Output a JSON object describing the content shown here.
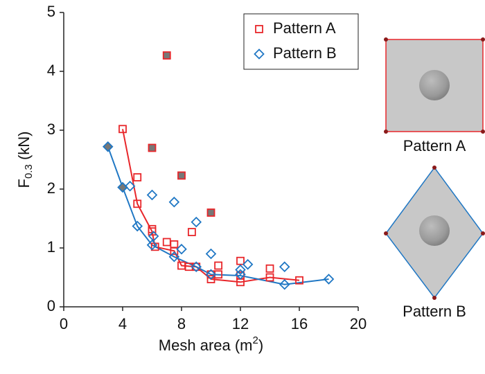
{
  "chart_data": {
    "type": "scatter",
    "x_label": {
      "text": "Mesh area (m",
      "sup": "2",
      "end": ")"
    },
    "y_label": {
      "text": "F",
      "sub": "0.3",
      "end": " (kN)"
    },
    "xlim": [
      0,
      20
    ],
    "xticks": [
      0,
      4,
      8,
      12,
      16,
      20
    ],
    "ylim": [
      0,
      5
    ],
    "yticks": [
      0,
      1,
      2,
      3,
      4,
      5
    ],
    "legend": "top-right",
    "panel_labels": [
      "Pattern A",
      "Pattern B"
    ],
    "series": [
      {
        "name": "Pattern A",
        "color": "#e8262a",
        "marker": "square",
        "x": [
          4,
          5,
          5,
          6,
          6,
          6.2,
          7,
          7.5,
          7.5,
          8,
          8.5,
          8.7,
          9,
          10,
          10,
          10.5,
          10.5,
          12,
          12,
          12,
          14,
          14,
          16,
          7,
          6,
          8,
          10
        ],
        "values": [
          3.02,
          2.2,
          1.75,
          1.32,
          1.28,
          1.02,
          1.1,
          1.06,
          0.95,
          0.7,
          0.68,
          1.27,
          0.68,
          0.47,
          0.55,
          0.7,
          0.55,
          0.78,
          0.42,
          0.53,
          0.65,
          0.5,
          0.45,
          4.27,
          2.7,
          2.23,
          1.6
        ],
        "filled": [
          false,
          false,
          false,
          false,
          false,
          false,
          false,
          false,
          false,
          false,
          false,
          false,
          false,
          false,
          false,
          false,
          false,
          false,
          false,
          false,
          false,
          false,
          false,
          true,
          true,
          true,
          true
        ],
        "fit_x": [
          4,
          5,
          6,
          6.2,
          7.5,
          8,
          9,
          10,
          12,
          14,
          16
        ],
        "fit_y": [
          3.02,
          1.75,
          1.28,
          1.02,
          0.95,
          0.7,
          0.68,
          0.47,
          0.42,
          0.5,
          0.45
        ]
      },
      {
        "name": "Pattern B",
        "color": "#1f77c4",
        "marker": "diamond",
        "x": [
          3,
          4,
          4.5,
          5,
          6,
          6,
          6.1,
          7.5,
          7.5,
          8,
          9,
          9,
          10,
          10,
          12,
          12,
          12.5,
          15,
          15,
          18
        ],
        "values": [
          2.72,
          2.03,
          2.05,
          1.37,
          1.9,
          1.05,
          1.2,
          1.78,
          0.85,
          0.98,
          0.68,
          1.44,
          0.9,
          0.55,
          0.63,
          0.55,
          0.72,
          0.68,
          0.38,
          0.47
        ],
        "filled": [
          true,
          true,
          false,
          false,
          false,
          false,
          false,
          false,
          false,
          false,
          false,
          false,
          false,
          false,
          false,
          false,
          false,
          false,
          false,
          false
        ],
        "fit_x": [
          3,
          4,
          5,
          6,
          7.5,
          9,
          10,
          12,
          15,
          18
        ],
        "fit_y": [
          2.72,
          2.03,
          1.37,
          1.05,
          0.85,
          0.68,
          0.55,
          0.53,
          0.38,
          0.47
        ]
      }
    ]
  }
}
